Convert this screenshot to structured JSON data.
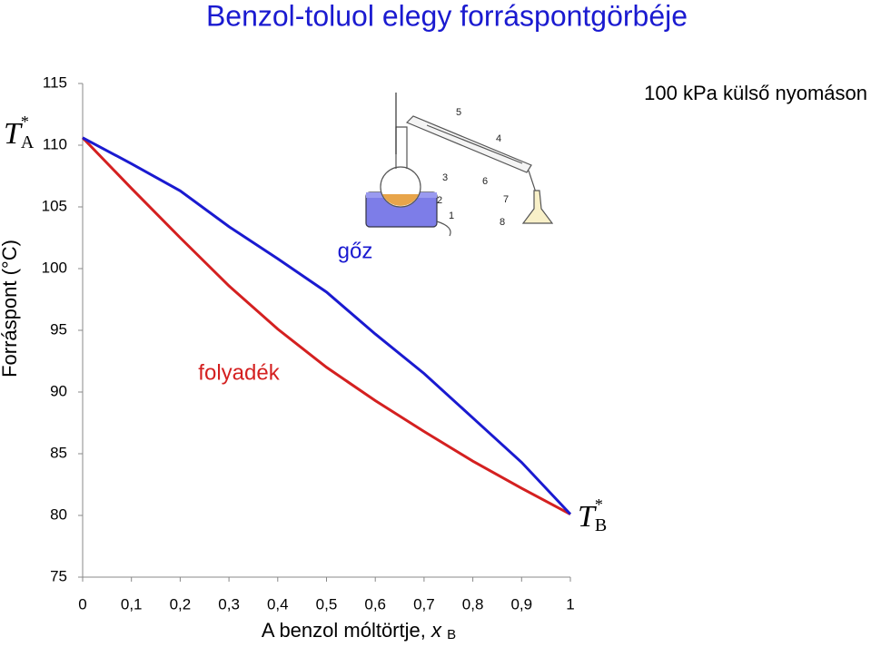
{
  "chart_data": {
    "type": "line",
    "title": "Benzol-toluol elegy forráspontgörbéje",
    "subtitle": "100 kPa külső nyomáson",
    "ylabel": "Forráspont  (°C)",
    "xlabel": {
      "text": "A benzol móltörtje,",
      "var": "x",
      "sub": "B"
    },
    "x": [
      0,
      0.1,
      0.2,
      0.3,
      0.4,
      0.5,
      0.6,
      0.7,
      0.8,
      0.9,
      1
    ],
    "series": [
      {
        "name": "folyadék",
        "color": "#d42020",
        "values": [
          110.6,
          106.5,
          102.5,
          98.6,
          95.1,
          92.0,
          89.3,
          86.8,
          84.4,
          82.2,
          80.1
        ]
      },
      {
        "name": "gőz",
        "color": "#1a1ad0",
        "values": [
          110.6,
          108.5,
          106.3,
          103.4,
          100.8,
          98.1,
          94.7,
          91.5,
          87.9,
          84.3,
          80.1
        ]
      }
    ],
    "xlim": [
      0,
      1
    ],
    "ylim": [
      75,
      115
    ],
    "xticks": [
      0,
      {
        "value": 0.1,
        "label": "0,1"
      },
      {
        "value": 0.2,
        "label": "0,2"
      },
      {
        "value": 0.3,
        "label": "0,3"
      },
      {
        "value": 0.4,
        "label": "0,4"
      },
      {
        "value": 0.5,
        "label": "0,5"
      },
      {
        "value": 0.6,
        "label": "0,6"
      },
      {
        "value": 0.7,
        "label": "0,7"
      },
      {
        "value": 0.8,
        "label": "0,8"
      },
      {
        "value": 0.9,
        "label": "0,9"
      },
      1
    ],
    "yticks": [
      75,
      80,
      85,
      90,
      95,
      100,
      105,
      110,
      115
    ],
    "grid": false,
    "markers": [
      {
        "symbol": "T",
        "sub": "A",
        "sup": "*"
      },
      {
        "symbol": "T",
        "sub": "B",
        "sup": "*"
      }
    ],
    "apparatus_labels": [
      "1",
      "2",
      "3",
      "4",
      "5",
      "6",
      "7",
      "8"
    ]
  }
}
